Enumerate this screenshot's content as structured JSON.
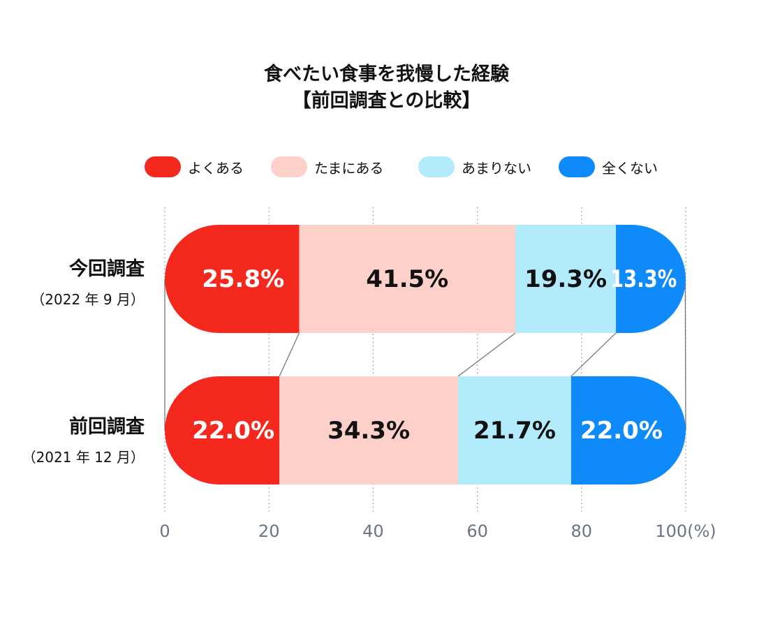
{
  "title": {
    "line1": "食べたい食事を我慢した経験",
    "line2": "【前回調査との比較】"
  },
  "legend": [
    {
      "label": "よくある",
      "color": "#f5281d"
    },
    {
      "label": "たまにある",
      "color": "#fdd0c9"
    },
    {
      "label": "あまりない",
      "color": "#b2ebfb"
    },
    {
      "label": "全くない",
      "color": "#0e8afa"
    }
  ],
  "rows": [
    {
      "label": "今回調査",
      "sublabel": "（2022 年 9 月）"
    },
    {
      "label": "前回調査",
      "sublabel": "（2021 年 12 月）"
    }
  ],
  "chart_data": {
    "type": "bar",
    "orientation": "horizontal",
    "stacked": true,
    "percent_stacked": true,
    "title": "食べたい食事を我慢した経験【前回調査との比較】",
    "categories": [
      "今回調査",
      "前回調査"
    ],
    "category_sublabels": [
      "（2022 年 9 月）",
      "（2021 年 12 月）"
    ],
    "series": [
      {
        "name": "よくある",
        "values": [
          25.8,
          22.0
        ],
        "labels": [
          "25.8%",
          "22.0%"
        ],
        "color": "#f5281d",
        "label_color": "#ffffff"
      },
      {
        "name": "たまにある",
        "values": [
          41.5,
          34.3
        ],
        "labels": [
          "41.5%",
          "34.3%"
        ],
        "color": "#fdd0c9",
        "label_color": "#111111"
      },
      {
        "name": "あまりない",
        "values": [
          19.3,
          21.7
        ],
        "labels": [
          "19.3%",
          "21.7%"
        ],
        "color": "#b2ebfb",
        "label_color": "#111111"
      },
      {
        "name": "全くない",
        "values": [
          13.3,
          22.0
        ],
        "labels": [
          "13.3%",
          "22.0%"
        ],
        "color": "#0e8afa",
        "label_color": "#ffffff"
      }
    ],
    "xlim": [
      0,
      100
    ],
    "xticks": [
      0,
      20,
      40,
      60,
      80,
      100
    ],
    "xtick_labels": [
      "0",
      "20",
      "40",
      "60",
      "80",
      "100(%)"
    ],
    "legend_position": "top",
    "grid": "vertical dotted",
    "connector_lines": true
  }
}
